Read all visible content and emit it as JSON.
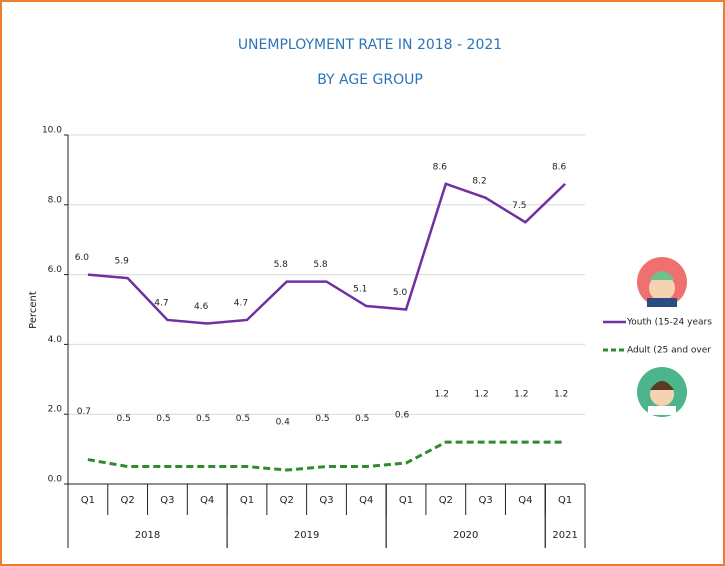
{
  "chart_data": {
    "type": "line",
    "title": "UNEMPLOYMENT RATE  IN  2018 - 2021",
    "subtitle": "BY AGE GROUP",
    "y_label": "Percent",
    "groups": [
      {
        "name": "2018",
        "categories": [
          "Q1",
          "Q2",
          "Q3",
          "Q4"
        ]
      },
      {
        "name": "2019",
        "categories": [
          "Q1",
          "Q2",
          "Q3",
          "Q4"
        ]
      },
      {
        "name": "2020",
        "categories": [
          "Q1",
          "Q2",
          "Q3",
          "Q4"
        ]
      },
      {
        "name": "2021",
        "categories": [
          "Q1"
        ]
      }
    ],
    "series": [
      {
        "name": "Youth (15-24 years",
        "color": "#7030a0",
        "dashed": false,
        "values": [
          6.0,
          5.9,
          4.7,
          4.6,
          4.7,
          5.8,
          5.8,
          5.1,
          5.0,
          8.6,
          8.2,
          7.5,
          8.6
        ],
        "value_labels": [
          "6.0",
          "5.9",
          "4.7",
          "4.6",
          "4.7",
          "5.8",
          "5.8",
          "5.1",
          "5.0",
          "8.6",
          "8.2",
          "7.5",
          "8.6"
        ]
      },
      {
        "name": "Adult (25 and over",
        "color": "#2e8b2e",
        "dashed": true,
        "values": [
          0.7,
          0.5,
          0.5,
          0.5,
          0.5,
          0.4,
          0.5,
          0.5,
          0.6,
          1.2,
          1.2,
          1.2,
          1.2
        ],
        "value_labels": [
          "0.7",
          "0.5",
          "0.5",
          "0.5",
          "0.5",
          "0.4",
          "0.5",
          "0.5",
          "0.6",
          "1.2",
          "1.2",
          "1.2",
          "1.2"
        ]
      }
    ],
    "ylim": [
      0,
      10
    ],
    "yticks": [
      {
        "value": 0,
        "label": "0.0"
      },
      {
        "value": 2,
        "label": "2.0"
      },
      {
        "value": 4,
        "label": "4.0"
      },
      {
        "value": 6,
        "label": "6.0"
      },
      {
        "value": 8,
        "label": "8.0"
      },
      {
        "value": 10,
        "label": "10.0"
      }
    ],
    "grid": true
  }
}
